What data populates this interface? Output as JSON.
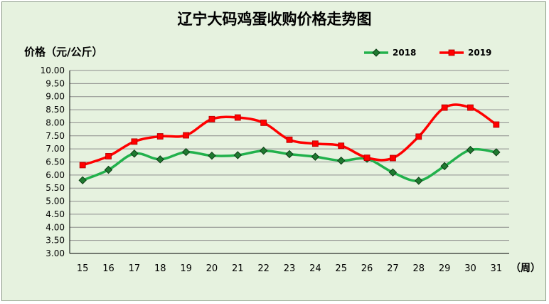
{
  "chart_data": {
    "type": "line",
    "title": "辽宁大码鸡蛋收购价格走势图",
    "ylabel": "价格（元/公斤）",
    "xlabel": "（周）",
    "ylim": [
      3.0,
      10.0
    ],
    "y_ticks": [
      "3.00",
      "3.50",
      "4.00",
      "4.50",
      "5.00",
      "5.50",
      "6.00",
      "6.50",
      "7.00",
      "7.50",
      "8.00",
      "8.50",
      "9.00",
      "9.50",
      "10.00"
    ],
    "categories": [
      "15",
      "16",
      "17",
      "18",
      "19",
      "20",
      "21",
      "22",
      "23",
      "24",
      "25",
      "26",
      "27",
      "28",
      "29",
      "30",
      "31"
    ],
    "grid": true,
    "legend": "top-right",
    "series": [
      {
        "name": "2018",
        "color": "#22b14c",
        "marker": "diamond",
        "values": [
          5.8,
          6.2,
          6.82,
          6.6,
          6.88,
          6.74,
          6.76,
          6.93,
          6.8,
          6.7,
          6.55,
          6.62,
          6.1,
          5.78,
          6.34,
          6.96,
          6.87
        ]
      },
      {
        "name": "2019",
        "color": "#ff0000",
        "marker": "square",
        "values": [
          6.38,
          6.72,
          7.28,
          7.48,
          7.52,
          8.14,
          8.2,
          8.0,
          7.35,
          7.2,
          7.12,
          6.66,
          6.65,
          7.47,
          8.58,
          8.58,
          7.93
        ]
      }
    ]
  }
}
